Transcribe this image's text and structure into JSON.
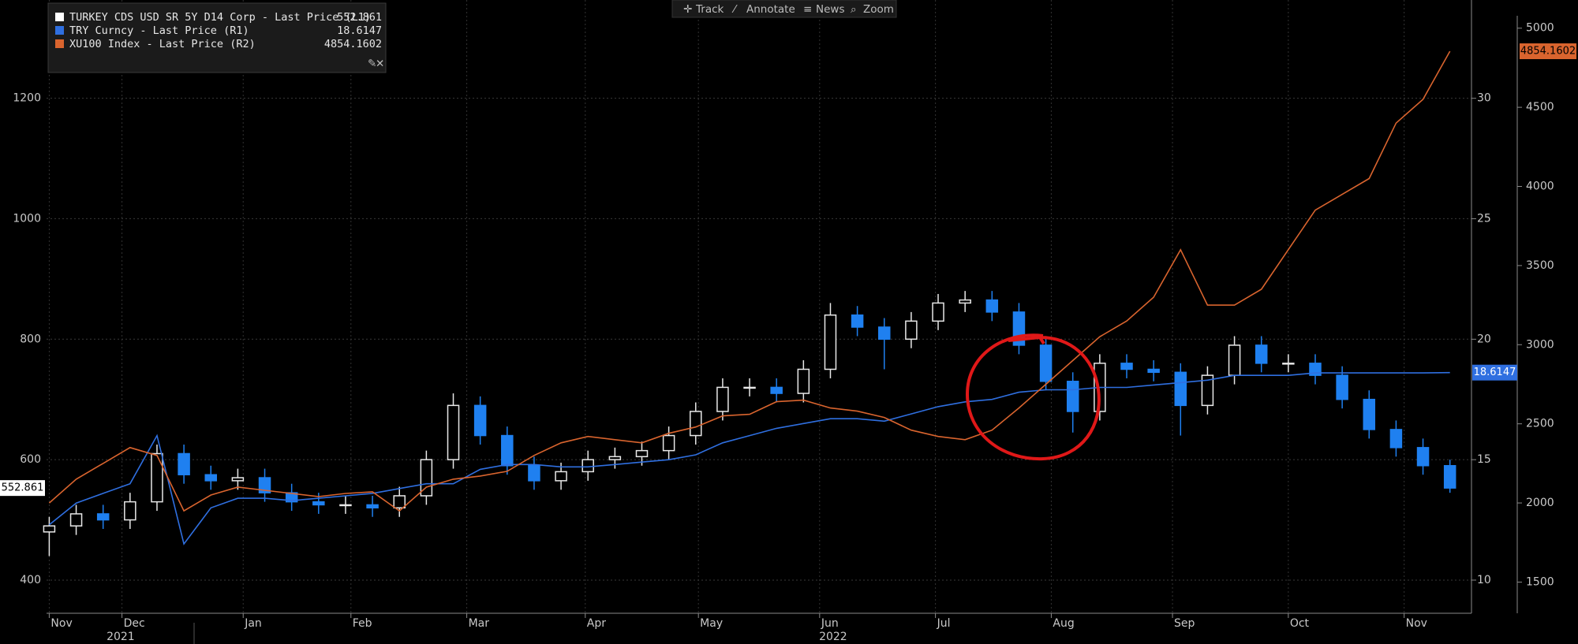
{
  "chart_data": {
    "type": "candlestick",
    "toolbar": [
      "Track",
      "Annotate",
      "News",
      "Zoom"
    ],
    "xlim": [
      -0.1,
      52.8
    ],
    "xticks": [
      {
        "value": 0,
        "label": "Nov"
      },
      {
        "value": 2.7,
        "label": "Dec"
      },
      {
        "value": 7.2,
        "label": "Jan"
      },
      {
        "value": 11.2,
        "label": "Feb"
      },
      {
        "value": 15.5,
        "label": "Mar"
      },
      {
        "value": 19.9,
        "label": "Apr"
      },
      {
        "value": 24.1,
        "label": "May"
      },
      {
        "value": 28.6,
        "label": "Jun"
      },
      {
        "value": 32.9,
        "label": "Jul"
      },
      {
        "value": 37.2,
        "label": "Aug"
      },
      {
        "value": 41.7,
        "label": "Sep"
      },
      {
        "value": 46.0,
        "label": "Oct"
      },
      {
        "value": 50.3,
        "label": "Nov"
      }
    ],
    "year_labels": [
      {
        "value": 2.65,
        "label": "2021"
      },
      {
        "value": 29.1,
        "label": "2022"
      }
    ],
    "ylim": [
      345,
      1363
    ],
    "yticks": [
      400,
      600,
      800,
      1000,
      1200
    ],
    "y2lim": [
      8.625,
      34.08
    ],
    "y2ticks": [
      10,
      15,
      20,
      25,
      30
    ],
    "y3lim": [
      1303,
      5178
    ],
    "y3ticks": [
      1500,
      2000,
      2500,
      3000,
      3500,
      4000,
      4500,
      5000
    ],
    "grid": true,
    "series": [
      {
        "name": "TURKEY CDS USD SR 5Y D14 Corp - Last Price (L1)",
        "type": "candlestick",
        "axis": "y",
        "color": "#ffffff",
        "up_color": "#e8e8e8",
        "down_color": "#1f80f0",
        "open": [
          480,
          490,
          510,
          500,
          530,
          610,
          575,
          565,
          570,
          545,
          530,
          525,
          525,
          520,
          540,
          600,
          690,
          640,
          590,
          565,
          580,
          600,
          605,
          615,
          640,
          680,
          720,
          720,
          710,
          750,
          840,
          820,
          800,
          830,
          860,
          865,
          845,
          790,
          730,
          680,
          760,
          750,
          745,
          690,
          740,
          790,
          760,
          760,
          740,
          700,
          650,
          620,
          590
        ],
        "high": [
          505,
          525,
          525,
          545,
          625,
          625,
          590,
          585,
          585,
          560,
          545,
          540,
          540,
          555,
          615,
          710,
          705,
          655,
          605,
          595,
          615,
          620,
          630,
          655,
          695,
          735,
          735,
          735,
          765,
          860,
          855,
          835,
          845,
          875,
          880,
          880,
          860,
          805,
          745,
          775,
          775,
          765,
          760,
          755,
          805,
          805,
          775,
          775,
          755,
          715,
          665,
          635,
          600
        ],
        "low": [
          440,
          475,
          485,
          485,
          515,
          560,
          550,
          550,
          530,
          515,
          510,
          510,
          505,
          505,
          525,
          585,
          625,
          575,
          550,
          550,
          565,
          585,
          590,
          600,
          625,
          665,
          705,
          695,
          695,
          735,
          805,
          750,
          785,
          815,
          845,
          830,
          775,
          715,
          645,
          665,
          735,
          730,
          640,
          675,
          725,
          745,
          745,
          725,
          685,
          635,
          605,
          575,
          545
        ],
        "close": [
          490,
          510,
          500,
          530,
          610,
          575,
          565,
          570,
          545,
          530,
          525,
          525,
          520,
          540,
          600,
          690,
          640,
          590,
          565,
          580,
          600,
          605,
          615,
          640,
          680,
          720,
          720,
          710,
          750,
          840,
          820,
          800,
          830,
          860,
          865,
          845,
          790,
          730,
          680,
          760,
          750,
          745,
          690,
          740,
          790,
          760,
          760,
          740,
          700,
          650,
          620,
          590,
          552.861
        ]
      },
      {
        "name": "TRY Curncy - Last Price (R1)",
        "type": "line",
        "axis": "y2",
        "color": "#2f6fe0",
        "values": [
          12.3,
          13.2,
          13.6,
          14.0,
          16.0,
          11.5,
          13.0,
          13.4,
          13.4,
          13.3,
          13.4,
          13.5,
          13.6,
          13.8,
          14.0,
          14.0,
          14.6,
          14.8,
          14.8,
          14.7,
          14.7,
          14.8,
          14.9,
          15.0,
          15.2,
          15.7,
          16.0,
          16.3,
          16.5,
          16.7,
          16.7,
          16.6,
          16.9,
          17.2,
          17.4,
          17.5,
          17.8,
          17.9,
          17.9,
          18.0,
          18.0,
          18.1,
          18.2,
          18.3,
          18.5,
          18.5,
          18.5,
          18.6,
          18.6,
          18.6,
          18.6,
          18.6,
          18.6147
        ]
      },
      {
        "name": "XU100 Index - Last Price (R2)",
        "type": "line",
        "axis": "y3",
        "color": "#d9642e",
        "values": [
          2000,
          2150,
          2250,
          2350,
          2300,
          1950,
          2050,
          2100,
          2080,
          2060,
          2040,
          2060,
          2070,
          1950,
          2100,
          2150,
          2170,
          2200,
          2300,
          2380,
          2420,
          2400,
          2380,
          2440,
          2480,
          2550,
          2560,
          2640,
          2650,
          2600,
          2580,
          2540,
          2460,
          2420,
          2400,
          2460,
          2600,
          2750,
          2900,
          3050,
          3150,
          3300,
          3600,
          3250,
          3250,
          3350,
          3600,
          3850,
          3950,
          4050,
          4400,
          4550,
          4854.1602
        ]
      }
    ]
  }
}
